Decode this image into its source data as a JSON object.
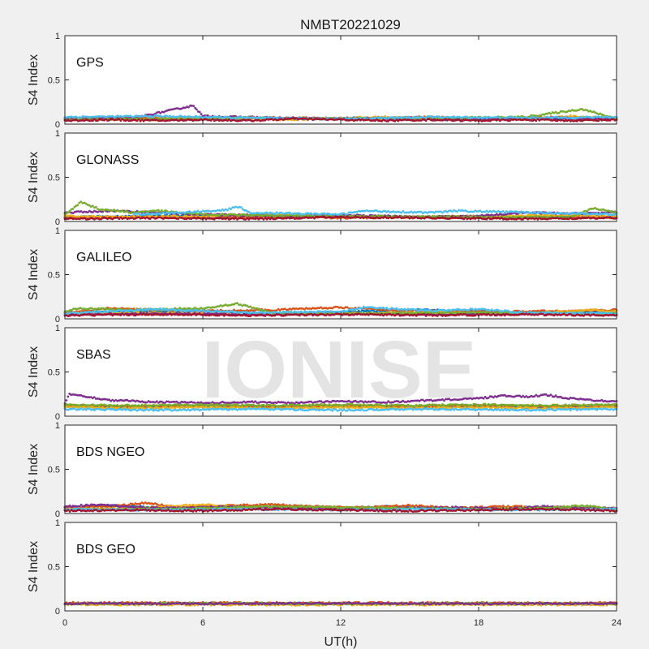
{
  "chart_data": {
    "type": "scatter",
    "title": "NMBT20221029",
    "xlabel": "UT(h)",
    "ylabel": "S4 Index",
    "xlim": [
      0,
      24
    ],
    "ylim": [
      0,
      1
    ],
    "xticks": [
      "0",
      "6",
      "12",
      "18",
      "24"
    ],
    "yticks": [
      "0",
      "0.5",
      "1"
    ],
    "grid": false,
    "watermark": "IONISE",
    "series_colors": [
      "#0072BD",
      "#D95319",
      "#EDB120",
      "#7E2F8E",
      "#77AC30",
      "#4DBEEE",
      "#A2142F"
    ],
    "panels": [
      {
        "label": "GPS",
        "series": [
          {
            "color": "#0072BD",
            "x": [
              0,
              2,
              4,
              6,
              8,
              10,
              12,
              14,
              16,
              18,
              20,
              22,
              24
            ],
            "y": [
              0.06,
              0.07,
              0.06,
              0.05,
              0.07,
              0.06,
              0.07,
              0.06,
              0.05,
              0.06,
              0.07,
              0.06,
              0.06
            ]
          },
          {
            "color": "#D95319",
            "x": [
              0,
              2,
              4,
              6,
              8,
              10,
              12,
              14,
              16,
              18,
              20,
              22,
              24
            ],
            "y": [
              0.05,
              0.08,
              0.07,
              0.06,
              0.08,
              0.07,
              0.06,
              0.07,
              0.08,
              0.06,
              0.07,
              0.08,
              0.06
            ]
          },
          {
            "color": "#EDB120",
            "x": [
              0,
              2,
              4,
              6,
              8,
              10,
              12,
              14,
              16,
              18,
              20,
              22,
              24
            ],
            "y": [
              0.07,
              0.06,
              0.05,
              0.08,
              0.06,
              0.05,
              0.07,
              0.08,
              0.06,
              0.07,
              0.05,
              0.09,
              0.07
            ]
          },
          {
            "color": "#7E2F8E",
            "x": [
              0,
              3,
              5.6,
              6,
              9,
              12,
              15,
              18,
              21,
              24
            ],
            "y": [
              0.06,
              0.07,
              0.21,
              0.09,
              0.07,
              0.06,
              0.07,
              0.06,
              0.07,
              0.06
            ]
          },
          {
            "color": "#77AC30",
            "x": [
              0,
              4,
              8,
              12,
              16,
              20,
              22.5,
              24
            ],
            "y": [
              0.05,
              0.06,
              0.07,
              0.06,
              0.07,
              0.08,
              0.17,
              0.06
            ]
          },
          {
            "color": "#4DBEEE",
            "x": [
              0,
              4,
              8,
              12,
              16,
              20,
              24
            ],
            "y": [
              0.08,
              0.09,
              0.07,
              0.06,
              0.08,
              0.07,
              0.08
            ]
          },
          {
            "color": "#A2142F",
            "x": [
              0,
              2,
              4,
              6,
              8,
              10,
              12,
              14,
              16,
              18,
              20,
              22,
              24
            ],
            "y": [
              0.04,
              0.05,
              0.04,
              0.05,
              0.04,
              0.06,
              0.05,
              0.04,
              0.05,
              0.04,
              0.05,
              0.04,
              0.05
            ]
          }
        ]
      },
      {
        "label": "GLONASS",
        "series": [
          {
            "color": "#0072BD",
            "x": [
              0,
              3,
              6,
              9,
              12,
              15,
              18,
              21,
              24
            ],
            "y": [
              0.05,
              0.06,
              0.07,
              0.05,
              0.06,
              0.05,
              0.06,
              0.05,
              0.06
            ]
          },
          {
            "color": "#D95319",
            "x": [
              0,
              3,
              6,
              9,
              12,
              15,
              18,
              21,
              24
            ],
            "y": [
              0.04,
              0.05,
              0.04,
              0.05,
              0.04,
              0.05,
              0.04,
              0.05,
              0.04
            ]
          },
          {
            "color": "#EDB120",
            "x": [
              0,
              3,
              6,
              9,
              12,
              15,
              18,
              21,
              24
            ],
            "y": [
              0.06,
              0.05,
              0.06,
              0.08,
              0.06,
              0.05,
              0.06,
              0.07,
              0.06
            ]
          },
          {
            "color": "#7E2F8E",
            "x": [
              0,
              2,
              4,
              6,
              8,
              10,
              12,
              14,
              16,
              18,
              20,
              22,
              24
            ],
            "y": [
              0.1,
              0.12,
              0.1,
              0.08,
              0.07,
              0.06,
              0.07,
              0.06,
              0.05,
              0.06,
              0.1,
              0.09,
              0.1
            ]
          },
          {
            "color": "#77AC30",
            "x": [
              0,
              0.7,
              1.5,
              3,
              4,
              6,
              12,
              18,
              22,
              23,
              24
            ],
            "y": [
              0.08,
              0.22,
              0.14,
              0.1,
              0.12,
              0.08,
              0.06,
              0.05,
              0.05,
              0.15,
              0.1
            ]
          },
          {
            "color": "#4DBEEE",
            "x": [
              3,
              5,
              7,
              7.6,
              8,
              12,
              13,
              16,
              17,
              24
            ],
            "y": [
              0.08,
              0.1,
              0.13,
              0.17,
              0.1,
              0.08,
              0.12,
              0.1,
              0.12,
              0.08
            ]
          },
          {
            "color": "#A2142F",
            "x": [
              0,
              4,
              8,
              12,
              16,
              20,
              24
            ],
            "y": [
              0.03,
              0.04,
              0.03,
              0.05,
              0.04,
              0.03,
              0.04
            ]
          }
        ]
      },
      {
        "label": "GALILEO",
        "series": [
          {
            "color": "#0072BD",
            "x": [
              0,
              3,
              6,
              9,
              12,
              15,
              18,
              21,
              24
            ],
            "y": [
              0.07,
              0.08,
              0.09,
              0.06,
              0.08,
              0.1,
              0.09,
              0.07,
              0.08
            ]
          },
          {
            "color": "#D95319",
            "x": [
              0,
              2,
              4,
              6,
              9,
              12,
              14,
              16,
              19,
              22,
              24
            ],
            "y": [
              0.07,
              0.12,
              0.1,
              0.09,
              0.1,
              0.13,
              0.1,
              0.09,
              0.08,
              0.09,
              0.1
            ]
          },
          {
            "color": "#EDB120",
            "x": [
              0,
              4,
              8,
              12,
              16,
              20,
              23,
              24
            ],
            "y": [
              0.06,
              0.07,
              0.05,
              0.06,
              0.07,
              0.06,
              0.1,
              0.08
            ]
          },
          {
            "color": "#7E2F8E",
            "x": [
              0,
              4,
              8,
              12,
              16,
              20,
              24
            ],
            "y": [
              0.05,
              0.06,
              0.05,
              0.06,
              0.05,
              0.06,
              0.05
            ]
          },
          {
            "color": "#77AC30",
            "x": [
              0,
              0.6,
              3,
              6,
              7.5,
              9,
              12,
              18,
              24
            ],
            "y": [
              0.08,
              0.12,
              0.1,
              0.12,
              0.17,
              0.07,
              0.06,
              0.07,
              0.06
            ]
          },
          {
            "color": "#4DBEEE",
            "x": [
              0,
              4,
              8,
              12,
              13,
              16,
              18,
              20,
              24
            ],
            "y": [
              0.06,
              0.11,
              0.07,
              0.08,
              0.13,
              0.09,
              0.11,
              0.07,
              0.06
            ]
          },
          {
            "color": "#A2142F",
            "x": [
              0,
              4,
              8,
              12,
              16,
              20,
              24
            ],
            "y": [
              0.04,
              0.05,
              0.04,
              0.05,
              0.04,
              0.05,
              0.04
            ]
          }
        ]
      },
      {
        "label": "SBAS",
        "series": [
          {
            "color": "#0072BD",
            "x": [
              0,
              3,
              6,
              9,
              12,
              15,
              18,
              21,
              24
            ],
            "y": [
              0.11,
              0.1,
              0.11,
              0.1,
              0.11,
              0.1,
              0.11,
              0.1,
              0.11
            ]
          },
          {
            "color": "#D95319",
            "x": [
              0,
              3,
              6,
              9,
              12,
              15,
              18,
              21,
              24
            ],
            "y": [
              0.12,
              0.11,
              0.12,
              0.11,
              0.12,
              0.11,
              0.12,
              0.11,
              0.12
            ]
          },
          {
            "color": "#EDB120",
            "x": [
              0,
              3,
              6,
              9,
              12,
              15,
              18,
              21,
              24
            ],
            "y": [
              0.1,
              0.09,
              0.1,
              0.09,
              0.1,
              0.09,
              0.1,
              0.09,
              0.1
            ]
          },
          {
            "color": "#7E2F8E",
            "x": [
              0,
              0.2,
              2,
              4,
              6,
              8,
              10,
              12,
              14,
              16,
              18,
              19,
              20,
              21,
              22,
              23,
              24
            ],
            "y": [
              0.15,
              0.25,
              0.18,
              0.16,
              0.15,
              0.16,
              0.15,
              0.17,
              0.16,
              0.18,
              0.2,
              0.23,
              0.22,
              0.24,
              0.2,
              0.18,
              0.17
            ]
          },
          {
            "color": "#77AC30",
            "x": [
              0,
              3,
              6,
              9,
              12,
              15,
              18,
              21,
              24
            ],
            "y": [
              0.13,
              0.12,
              0.13,
              0.12,
              0.13,
              0.12,
              0.13,
              0.12,
              0.13
            ]
          },
          {
            "color": "#4DBEEE",
            "x": [
              0,
              4,
              8,
              12,
              16,
              20,
              24
            ],
            "y": [
              0.08,
              0.07,
              0.08,
              0.07,
              0.08,
              0.07,
              0.08
            ]
          }
        ]
      },
      {
        "label": "BDS NGEO",
        "series": [
          {
            "color": "#0072BD",
            "x": [
              0,
              2,
              4,
              6,
              8,
              10,
              12,
              14,
              16,
              18,
              20,
              22,
              24
            ],
            "y": [
              0.06,
              0.09,
              0.07,
              0.05,
              0.08,
              0.06,
              0.05,
              0.08,
              0.06,
              0.05,
              0.07,
              0.06,
              0.05
            ]
          },
          {
            "color": "#D95319",
            "x": [
              0,
              2,
              3.5,
              5,
              7,
              9,
              11,
              13,
              15,
              17,
              19,
              21,
              24
            ],
            "y": [
              0.07,
              0.08,
              0.12,
              0.07,
              0.09,
              0.1,
              0.08,
              0.07,
              0.09,
              0.06,
              0.08,
              0.07,
              0.06
            ]
          },
          {
            "color": "#EDB120",
            "x": [
              0,
              3,
              6,
              9,
              12,
              15,
              18,
              21,
              24
            ],
            "y": [
              0.05,
              0.06,
              0.1,
              0.06,
              0.05,
              0.06,
              0.05,
              0.07,
              0.05
            ]
          },
          {
            "color": "#7E2F8E",
            "x": [
              0,
              1.5,
              3,
              5,
              7,
              9,
              11,
              13,
              15,
              17,
              19,
              21,
              24
            ],
            "y": [
              0.08,
              0.1,
              0.07,
              0.06,
              0.08,
              0.07,
              0.06,
              0.05,
              0.06,
              0.07,
              0.05,
              0.08,
              0.06
            ]
          },
          {
            "color": "#77AC30",
            "x": [
              0,
              3,
              6,
              9,
              12,
              15,
              18,
              21,
              22.5,
              24
            ],
            "y": [
              0.04,
              0.05,
              0.06,
              0.08,
              0.07,
              0.06,
              0.05,
              0.06,
              0.09,
              0.05
            ]
          },
          {
            "color": "#4DBEEE",
            "x": [
              0,
              4,
              8,
              12,
              16,
              20,
              24
            ],
            "y": [
              0.05,
              0.04,
              0.05,
              0.04,
              0.05,
              0.04,
              0.05
            ]
          },
          {
            "color": "#A2142F",
            "x": [
              0,
              3,
              6,
              9,
              12,
              15,
              18,
              21,
              24
            ],
            "y": [
              0.03,
              0.04,
              0.03,
              0.05,
              0.04,
              0.03,
              0.04,
              0.05,
              0.03
            ]
          }
        ]
      },
      {
        "label": "BDS GEO",
        "series": [
          {
            "color": "#0072BD",
            "x": [
              0,
              6,
              12,
              18,
              24
            ],
            "y": [
              0.08,
              0.08,
              0.08,
              0.08,
              0.08
            ]
          },
          {
            "color": "#D95319",
            "x": [
              0,
              6,
              12,
              18,
              24
            ],
            "y": [
              0.09,
              0.09,
              0.09,
              0.09,
              0.09
            ]
          },
          {
            "color": "#EDB120",
            "x": [
              0,
              6,
              12,
              18,
              24
            ],
            "y": [
              0.07,
              0.07,
              0.07,
              0.07,
              0.07
            ]
          },
          {
            "color": "#77AC30",
            "x": [
              0,
              6,
              12,
              18,
              24
            ],
            "y": [
              0.08,
              0.085,
              0.08,
              0.085,
              0.08
            ]
          },
          {
            "color": "#7E2F8E",
            "x": [
              0,
              6,
              12,
              18,
              24
            ],
            "y": [
              0.085,
              0.08,
              0.085,
              0.08,
              0.085
            ]
          }
        ]
      }
    ]
  }
}
